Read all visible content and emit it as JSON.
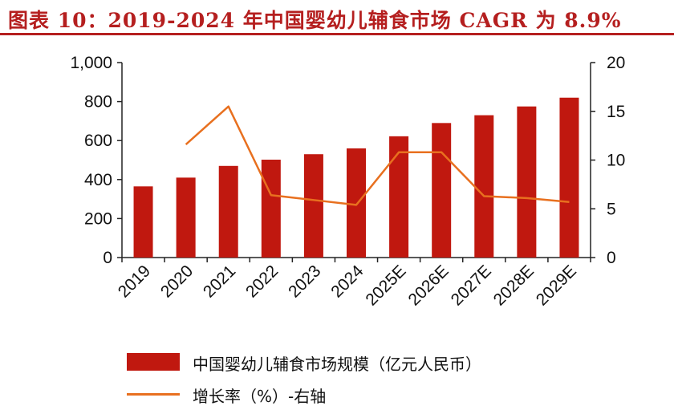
{
  "title": "图表 10：2019-2024 年中国婴幼儿辅食市场 CAGR 为 8.9%",
  "colors": {
    "bar": "#c0180f",
    "line": "#e8701f",
    "title": "#b51f1f"
  },
  "chart_data": {
    "type": "bar",
    "categories": [
      "2019",
      "2020",
      "2021",
      "2022",
      "2023",
      "2024",
      "2025E",
      "2026E",
      "2027E",
      "2028E",
      "2029E"
    ],
    "series": [
      {
        "name": "中国婴幼儿辅食市场规模（亿元人民币）",
        "type": "bar",
        "axis": "left",
        "values": [
          365,
          410,
          470,
          502,
          530,
          560,
          622,
          690,
          730,
          775,
          820
        ]
      },
      {
        "name": "增长率（%）-右轴",
        "type": "line",
        "axis": "right",
        "values": [
          null,
          11.6,
          15.5,
          6.4,
          5.9,
          5.4,
          10.8,
          10.8,
          6.3,
          6.1,
          5.7
        ]
      }
    ],
    "yleft": {
      "lim": [
        0,
        1000
      ],
      "ticks": [
        0,
        200,
        400,
        600,
        800,
        1000
      ],
      "tick_labels": [
        "0",
        "200",
        "400",
        "600",
        "800",
        "1,000"
      ]
    },
    "yright": {
      "lim": [
        0,
        20
      ],
      "ticks": [
        0,
        5,
        10,
        15,
        20
      ],
      "tick_labels": [
        "0",
        "5",
        "10",
        "15",
        "20"
      ]
    },
    "legend": [
      {
        "label": "中国婴幼儿辅食市场规模（亿元人民币）",
        "kind": "bar"
      },
      {
        "label": "增长率（%）-右轴",
        "kind": "line"
      }
    ]
  }
}
